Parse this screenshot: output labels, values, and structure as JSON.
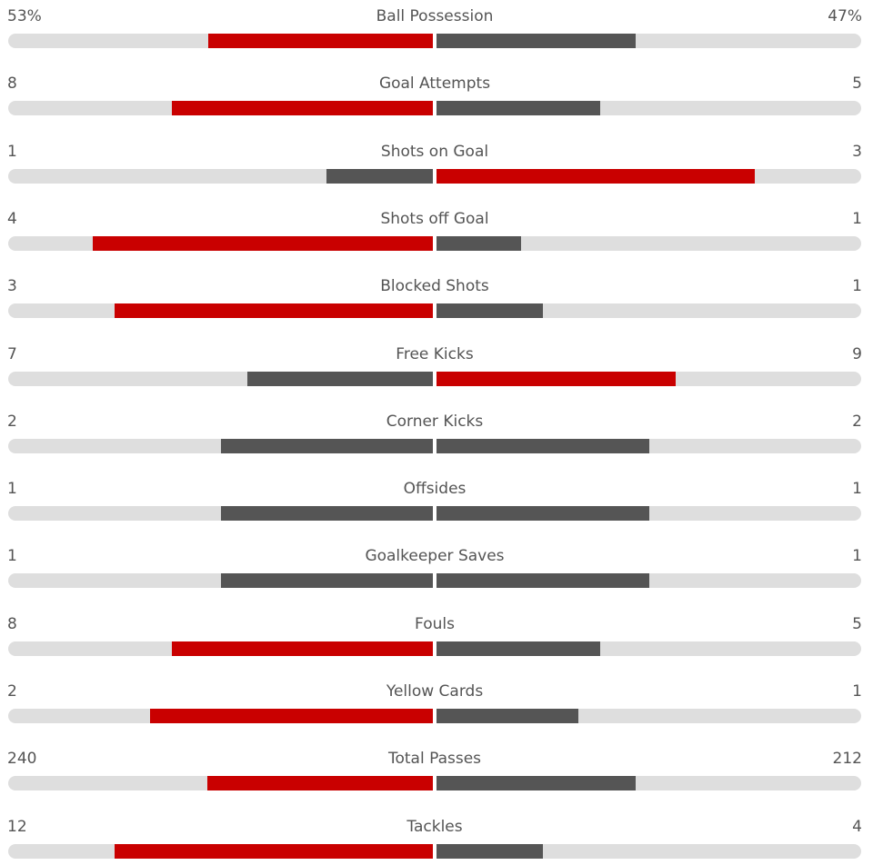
{
  "colors": {
    "winner": "#c90000",
    "other": "#555555",
    "track": "#dedede",
    "text": "#545454"
  },
  "stats": [
    {
      "name": "Ball Possession",
      "home": "53%",
      "away": "47%",
      "home_value": 53,
      "away_value": 47
    },
    {
      "name": "Goal Attempts",
      "home": "8",
      "away": "5",
      "home_value": 8,
      "away_value": 5
    },
    {
      "name": "Shots on Goal",
      "home": "1",
      "away": "3",
      "home_value": 1,
      "away_value": 3
    },
    {
      "name": "Shots off Goal",
      "home": "4",
      "away": "1",
      "home_value": 4,
      "away_value": 1
    },
    {
      "name": "Blocked Shots",
      "home": "3",
      "away": "1",
      "home_value": 3,
      "away_value": 1
    },
    {
      "name": "Free Kicks",
      "home": "7",
      "away": "9",
      "home_value": 7,
      "away_value": 9
    },
    {
      "name": "Corner Kicks",
      "home": "2",
      "away": "2",
      "home_value": 2,
      "away_value": 2
    },
    {
      "name": "Offsides",
      "home": "1",
      "away": "1",
      "home_value": 1,
      "away_value": 1
    },
    {
      "name": "Goalkeeper Saves",
      "home": "1",
      "away": "1",
      "home_value": 1,
      "away_value": 1
    },
    {
      "name": "Fouls",
      "home": "8",
      "away": "5",
      "home_value": 8,
      "away_value": 5
    },
    {
      "name": "Yellow Cards",
      "home": "2",
      "away": "1",
      "home_value": 2,
      "away_value": 1
    },
    {
      "name": "Total Passes",
      "home": "240",
      "away": "212",
      "home_value": 240,
      "away_value": 212
    },
    {
      "name": "Tackles",
      "home": "12",
      "away": "4",
      "home_value": 12,
      "away_value": 4
    }
  ]
}
